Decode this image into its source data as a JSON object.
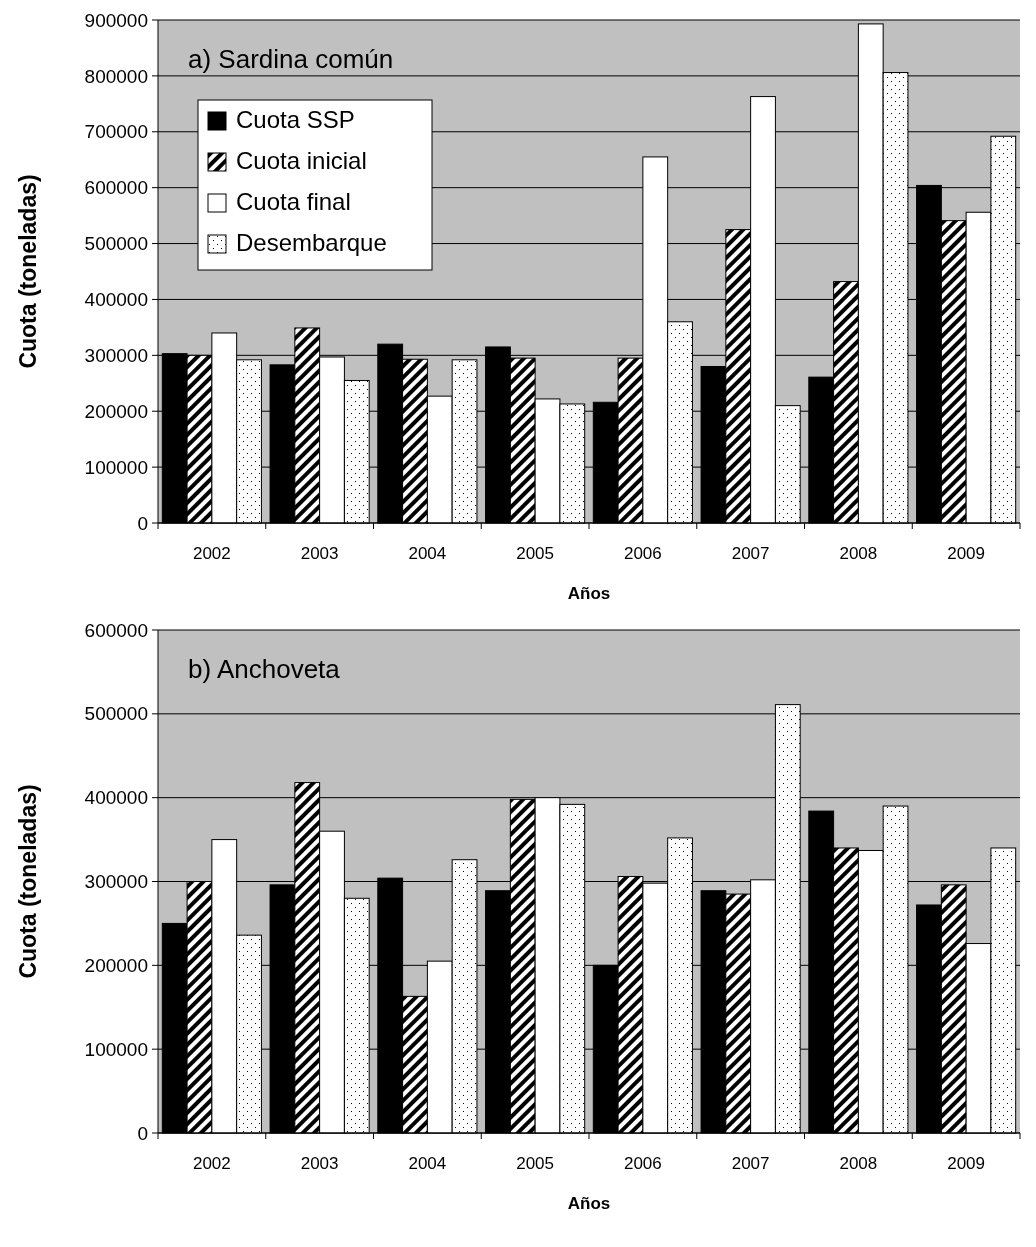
{
  "chart_data": [
    {
      "type": "bar",
      "title": "a) Sardina común",
      "xlabel": "Años",
      "ylabel": "Cuota (toneladas)",
      "categories": [
        "2002",
        "2003",
        "2004",
        "2005",
        "2006",
        "2007",
        "2008",
        "2009"
      ],
      "ylim": [
        0,
        900000
      ],
      "yticks": [
        0,
        100000,
        200000,
        300000,
        400000,
        500000,
        600000,
        700000,
        800000,
        900000
      ],
      "grid": "y",
      "legend": "top left",
      "series": [
        {
          "name": "Cuota SSP",
          "color": "#000000",
          "values": [
            303000,
            283000,
            320000,
            315000,
            216000,
            280000,
            261000,
            604000
          ]
        },
        {
          "name": "Cuota inicial",
          "color": "#000000",
          "values": [
            300000,
            349000,
            293000,
            295000,
            295000,
            525000,
            432000,
            541000
          ]
        },
        {
          "name": "Cuota final",
          "color": "#ffffff",
          "values": [
            340000,
            297000,
            227000,
            222000,
            655000,
            763000,
            893000,
            556000
          ]
        },
        {
          "name": "Desembarque",
          "color": "#000000",
          "values": [
            292000,
            255000,
            292000,
            213000,
            360000,
            210000,
            806000,
            692000
          ]
        }
      ]
    },
    {
      "type": "bar",
      "title": "b) Anchoveta",
      "xlabel": "Años",
      "ylabel": "Cuota (toneladas)",
      "categories": [
        "2002",
        "2003",
        "2004",
        "2005",
        "2006",
        "2007",
        "2008",
        "2009"
      ],
      "ylim": [
        0,
        600000
      ],
      "yticks": [
        0,
        100000,
        200000,
        300000,
        400000,
        500000,
        600000
      ],
      "grid": "y",
      "legend": false,
      "series": [
        {
          "color": "#000000",
          "values": [
            250000,
            296000,
            304000,
            289000,
            200000,
            289000,
            384000,
            272000
          ]
        },
        {
          "color": "#000000",
          "values": [
            300000,
            418000,
            163000,
            398000,
            306000,
            285000,
            340000,
            296000
          ]
        },
        {
          "color": "#ffffff",
          "values": [
            350000,
            360000,
            205000,
            400000,
            298000,
            302000,
            337000,
            226000
          ]
        },
        {
          "color": "#000000",
          "values": [
            236000,
            280000,
            326000,
            392000,
            352000,
            511000,
            390000,
            340000
          ]
        }
      ]
    }
  ]
}
